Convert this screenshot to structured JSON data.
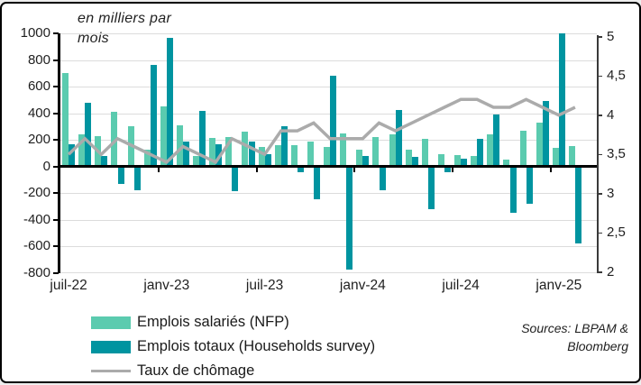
{
  "title": "en milliers par\nmois",
  "sources": "Sources: LBPAM & Bloomberg",
  "colors": {
    "light": "#5BCBAF",
    "dark": "#0094A0",
    "line": "#ababab",
    "grid": "#dcdcdc"
  },
  "chart_data": {
    "type": "bar",
    "title": "en milliers par mois",
    "categories": [
      "juil-22",
      "août-22",
      "sept-22",
      "oct-22",
      "nov-22",
      "déc-22",
      "janv-23",
      "févr-23",
      "mars-23",
      "avr-23",
      "mai-23",
      "juin-23",
      "juil-23",
      "août-23",
      "sept-23",
      "oct-23",
      "nov-23",
      "déc-23",
      "janv-24",
      "févr-24",
      "mars-24",
      "avr-24",
      "mai-24",
      "juin-24",
      "juil-24",
      "août-24",
      "sept-24",
      "oct-24",
      "nov-24",
      "déc-24",
      "janv-25",
      "févr-25"
    ],
    "x_tick_labels": [
      "juil-22",
      "janv-23",
      "juil-23",
      "janv-24",
      "juil-24",
      "janv-25"
    ],
    "series": [
      {
        "name": "Emplois salariés (NFP)",
        "type": "bar",
        "axis": "left",
        "color": "#5BCBAF",
        "values": [
          700,
          240,
          230,
          410,
          305,
          130,
          450,
          310,
          80,
          215,
          225,
          260,
          150,
          160,
          160,
          190,
          150,
          250,
          125,
          225,
          245,
          130,
          205,
          90,
          85,
          80,
          240,
          50,
          270,
          330,
          140,
          155
        ]
      },
      {
        "name": "Emplois totaux (Households survey)",
        "type": "bar",
        "axis": "left",
        "color": "#0094A0",
        "values": [
          170,
          480,
          80,
          -130,
          -180,
          760,
          965,
          190,
          420,
          170,
          -185,
          190,
          90,
          300,
          -45,
          -245,
          680,
          -770,
          80,
          -175,
          425,
          75,
          -320,
          -40,
          60,
          205,
          390,
          -350,
          -280,
          490,
          1000,
          -580
        ]
      },
      {
        "name": "Taux de chômage",
        "type": "line",
        "axis": "right",
        "color": "#ababab",
        "values": [
          3.5,
          3.7,
          3.5,
          3.7,
          3.6,
          3.5,
          3.4,
          3.6,
          3.5,
          3.4,
          3.7,
          3.6,
          3.5,
          3.8,
          3.8,
          3.9,
          3.7,
          3.7,
          3.7,
          3.9,
          3.8,
          3.9,
          4.0,
          4.1,
          4.2,
          4.2,
          4.1,
          4.1,
          4.2,
          4.1,
          4.0,
          4.1
        ]
      }
    ],
    "left_axis": {
      "min": -800,
      "max": 1000,
      "step": 200,
      "tick_labels": [
        "1000",
        "800",
        "600",
        "400",
        "200",
        "0",
        "-200",
        "-400",
        "-600",
        "-800"
      ]
    },
    "right_axis": {
      "min": 2,
      "max": 5,
      "step": 0.5,
      "tick_labels": [
        "5",
        "4,5",
        "4",
        "3,5",
        "3",
        "2,5",
        "2"
      ]
    },
    "grid": true,
    "legend_position": "bottom-left"
  }
}
